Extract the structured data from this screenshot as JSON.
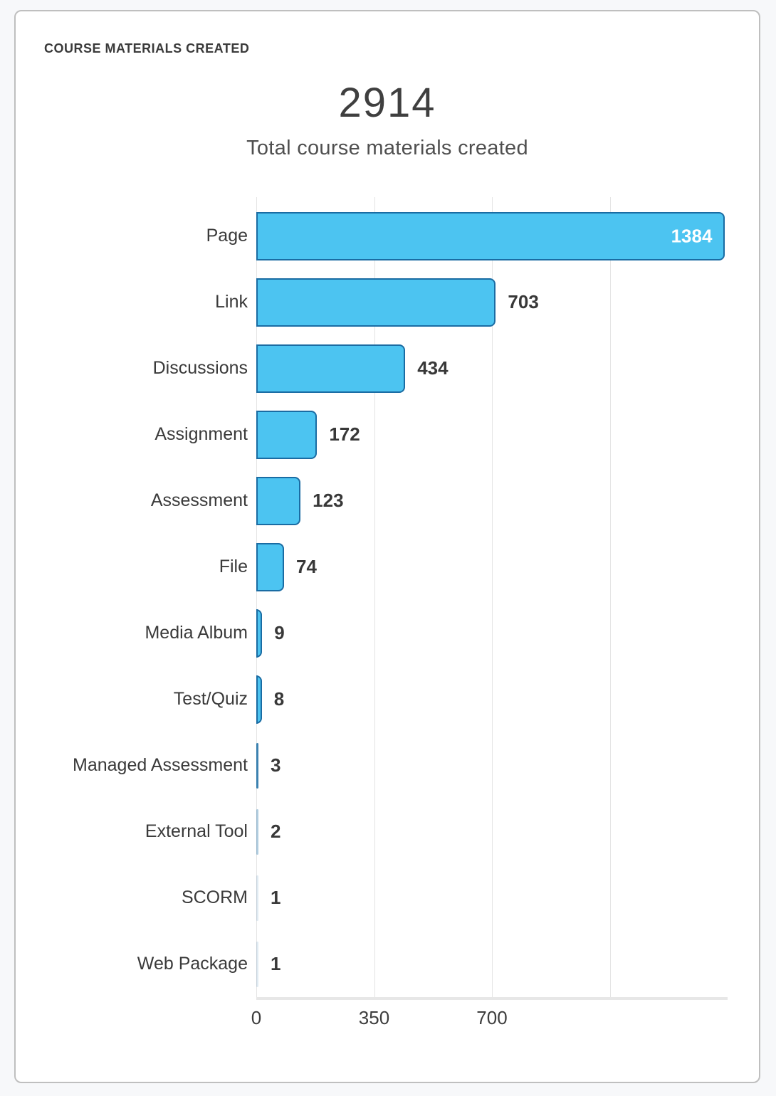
{
  "header": {
    "title": "COURSE MATERIALS CREATED"
  },
  "summary": {
    "total": "2914",
    "subtitle": "Total course materials created"
  },
  "chart_data": {
    "type": "bar",
    "orientation": "horizontal",
    "title": "COURSE MATERIALS CREATED",
    "categories": [
      "Page",
      "Link",
      "Discussions",
      "Assignment",
      "Assessment",
      "File",
      "Media Album",
      "Test/Quiz",
      "Managed Assessment",
      "External Tool",
      "SCORM",
      "Web Package"
    ],
    "values": [
      1384,
      703,
      434,
      172,
      123,
      74,
      9,
      8,
      3,
      2,
      1,
      1
    ],
    "xlabel": "",
    "ylabel": "",
    "xlim": [
      0,
      1400
    ],
    "x_ticks": [
      0,
      350,
      700
    ],
    "gridlines_at": [
      0,
      350,
      700,
      1050
    ],
    "grid": true,
    "legend": false,
    "colors": {
      "bar_fill": "#4cc4f1",
      "bar_border": "#1a6ca3",
      "value_inside": "#ffffff",
      "value_outside": "#383838"
    }
  }
}
